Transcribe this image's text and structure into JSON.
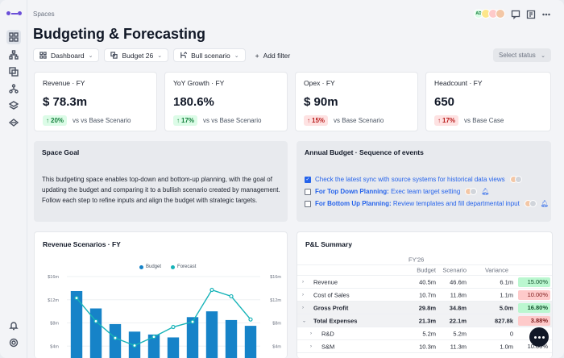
{
  "breadcrumb": "Spaces",
  "title": "Budgeting & Forecasting",
  "top_avatars": [
    {
      "initials": "AD",
      "bg": "#dcfce7",
      "fg": "#15803d"
    },
    {
      "initials": "",
      "bg": "#fde68a",
      "fg": "#000"
    },
    {
      "initials": "",
      "bg": "#fecaca",
      "fg": "#000"
    },
    {
      "initials": "",
      "bg": "#f3c7a6",
      "fg": "#000"
    }
  ],
  "filters": {
    "dashboard": "Dashboard",
    "budget": "Budget 26",
    "scenario": "Bull scenario",
    "add_filter": "Add filter",
    "status_placeholder": "Select status"
  },
  "kpis": [
    {
      "label": "Revenue · FY",
      "value": "$ 78.3m",
      "delta": "20%",
      "direction": "up",
      "compare": "vs vs Base Scenario"
    },
    {
      "label": "YoY Growth · FY",
      "value": "180.6%",
      "delta": "17%",
      "direction": "up",
      "compare": "vs vs Base Scenario"
    },
    {
      "label": "Opex · FY",
      "value": "$ 90m",
      "delta": "15%",
      "direction": "down",
      "compare": "vs Base Scenario"
    },
    {
      "label": "Headcount · FY",
      "value": "650",
      "delta": "17%",
      "direction": "down",
      "compare": "vs Base Case"
    }
  ],
  "space_goal": {
    "title": "Space Goal",
    "text": "This budgeting space enables top-down and bottom-up planning, with the goal of updating the budget and comparing it to a bullish scenario created by management. Follow each step to refine inputs and align the budget with strategic targets."
  },
  "annual_budget": {
    "title": "Annual Budget · Sequence of events",
    "tasks": [
      {
        "checked": true,
        "bold": "",
        "text": "Check the latest sync with source systems for historical data views",
        "bell": false
      },
      {
        "checked": false,
        "bold": "For Top Down Planning:",
        "text": " Exec team target setting",
        "bell": true
      },
      {
        "checked": false,
        "bold": "For Bottom Up Planning:",
        "text": " Review templates and fill departmental input",
        "bell": true
      }
    ]
  },
  "revenue_chart": {
    "title": "Revenue Scenarios · FY",
    "legend": [
      "Budget",
      "Forecast"
    ]
  },
  "chart_data": {
    "type": "bar",
    "title": "Revenue Scenarios · FY",
    "series": [
      {
        "name": "Budget",
        "type": "bar",
        "color": "#1683c8",
        "values": [
          13.5,
          10.5,
          7.8,
          6.5,
          6.0,
          5.5,
          9.0,
          10.0,
          8.5,
          7.5
        ]
      },
      {
        "name": "Forecast",
        "type": "line",
        "color": "#16b3b8",
        "values": [
          12.3,
          8.3,
          5.4,
          4.1,
          5.6,
          7.3,
          8.2,
          13.7,
          12.6,
          8.6
        ]
      }
    ],
    "y_ticks": [
      "$16m",
      "$12m",
      "$8m",
      "$4m"
    ],
    "ylim": [
      0,
      16
    ],
    "grid": true,
    "legend_position": "top-center"
  },
  "pl_summary": {
    "title": "P&L Summary",
    "period": "FY'26",
    "columns": [
      "Budget",
      "Scenario",
      "Variance"
    ],
    "rows": [
      {
        "label": "Revenue",
        "budget": "40.5m",
        "scenario": "46.6m",
        "variance": "6.1m",
        "pct": "15.00%",
        "sign": "pos",
        "bold": false,
        "gray": false,
        "caret": "›",
        "indent": 0
      },
      {
        "label": "Cost of Sales",
        "budget": "10.7m",
        "scenario": "11.8m",
        "variance": "1.1m",
        "pct": "10.00%",
        "sign": "neg",
        "bold": false,
        "gray": false,
        "caret": "›",
        "indent": 0
      },
      {
        "label": "Gross Profit",
        "budget": "29.8m",
        "scenario": "34.8m",
        "variance": "5.0m",
        "pct": "16.80%",
        "sign": "pos",
        "bold": true,
        "gray": true,
        "caret": "›",
        "indent": 0
      },
      {
        "label": "Total Expenses",
        "budget": "21.3m",
        "scenario": "22.1m",
        "variance": "827.8k",
        "pct": "3.88%",
        "sign": "neg",
        "bold": true,
        "gray": true,
        "caret": "⌄",
        "indent": 0
      },
      {
        "label": "R&D",
        "budget": "5.2m",
        "scenario": "5.2m",
        "variance": "0",
        "pct": "",
        "sign": "",
        "bold": false,
        "gray": false,
        "caret": "›",
        "indent": 1
      },
      {
        "label": "S&M",
        "budget": "10.3m",
        "scenario": "11.3m",
        "variance": "1.0m",
        "pct": "10.00%",
        "sign": "",
        "bold": false,
        "gray": false,
        "caret": "›",
        "indent": 1
      }
    ]
  }
}
